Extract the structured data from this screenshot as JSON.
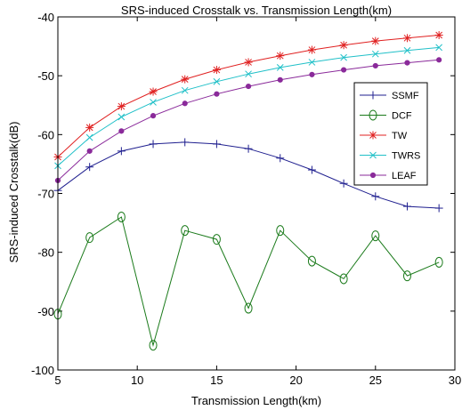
{
  "chart_data": {
    "type": "line",
    "title": "SRS-induced Crosstalk vs. Transmission Length(km)",
    "xlabel": "Transmission Length(km)",
    "ylabel": "SRS-induced Crosstalk(dB)",
    "xlim": [
      5,
      30
    ],
    "ylim": [
      -100,
      -40
    ],
    "xticks": [
      5,
      10,
      15,
      20,
      25,
      30
    ],
    "yticks": [
      -40,
      -50,
      -60,
      -70,
      -80,
      -90,
      -100
    ],
    "xtick_labels": [
      "5",
      "10",
      "15",
      "20",
      "25",
      "30"
    ],
    "ytick_labels": [
      "-40",
      "-50",
      "-60",
      "-70",
      "-80",
      "-90",
      "-100"
    ],
    "grid": false,
    "legend_position": "right",
    "x": [
      5,
      7,
      9,
      11,
      13,
      15,
      17,
      19,
      21,
      23,
      25,
      27,
      29
    ],
    "series": [
      {
        "name": "SSMF",
        "color": "#1f1f8f",
        "marker": "plus",
        "values": [
          -69.5,
          -65.5,
          -62.8,
          -61.6,
          -61.3,
          -61.6,
          -62.4,
          -64.0,
          -66.0,
          -68.3,
          -70.5,
          -72.2,
          -72.5
        ]
      },
      {
        "name": "DCF",
        "color": "#1a7a1a",
        "marker": "circle",
        "values": [
          -90.5,
          -77.5,
          -74.0,
          -95.8,
          -76.3,
          -77.8,
          -89.5,
          -76.3,
          -81.5,
          -84.5,
          -77.2,
          -84.0,
          -81.7
        ]
      },
      {
        "name": "TW",
        "color": "#e02020",
        "marker": "star",
        "values": [
          -63.8,
          -58.8,
          -55.2,
          -52.7,
          -50.6,
          -49.0,
          -47.7,
          -46.6,
          -45.6,
          -44.8,
          -44.1,
          -43.6,
          -43.1
        ]
      },
      {
        "name": "TWRS",
        "color": "#20c0c8",
        "marker": "x",
        "values": [
          -65.3,
          -60.5,
          -57.0,
          -54.5,
          -52.5,
          -51.0,
          -49.7,
          -48.6,
          -47.7,
          -46.9,
          -46.3,
          -45.7,
          -45.2
        ]
      },
      {
        "name": "LEAF",
        "color": "#8a2a9a",
        "marker": "dot",
        "values": [
          -67.8,
          -62.8,
          -59.4,
          -56.8,
          -54.7,
          -53.1,
          -51.8,
          -50.7,
          -49.8,
          -49.0,
          -48.3,
          -47.8,
          -47.3
        ]
      }
    ]
  }
}
